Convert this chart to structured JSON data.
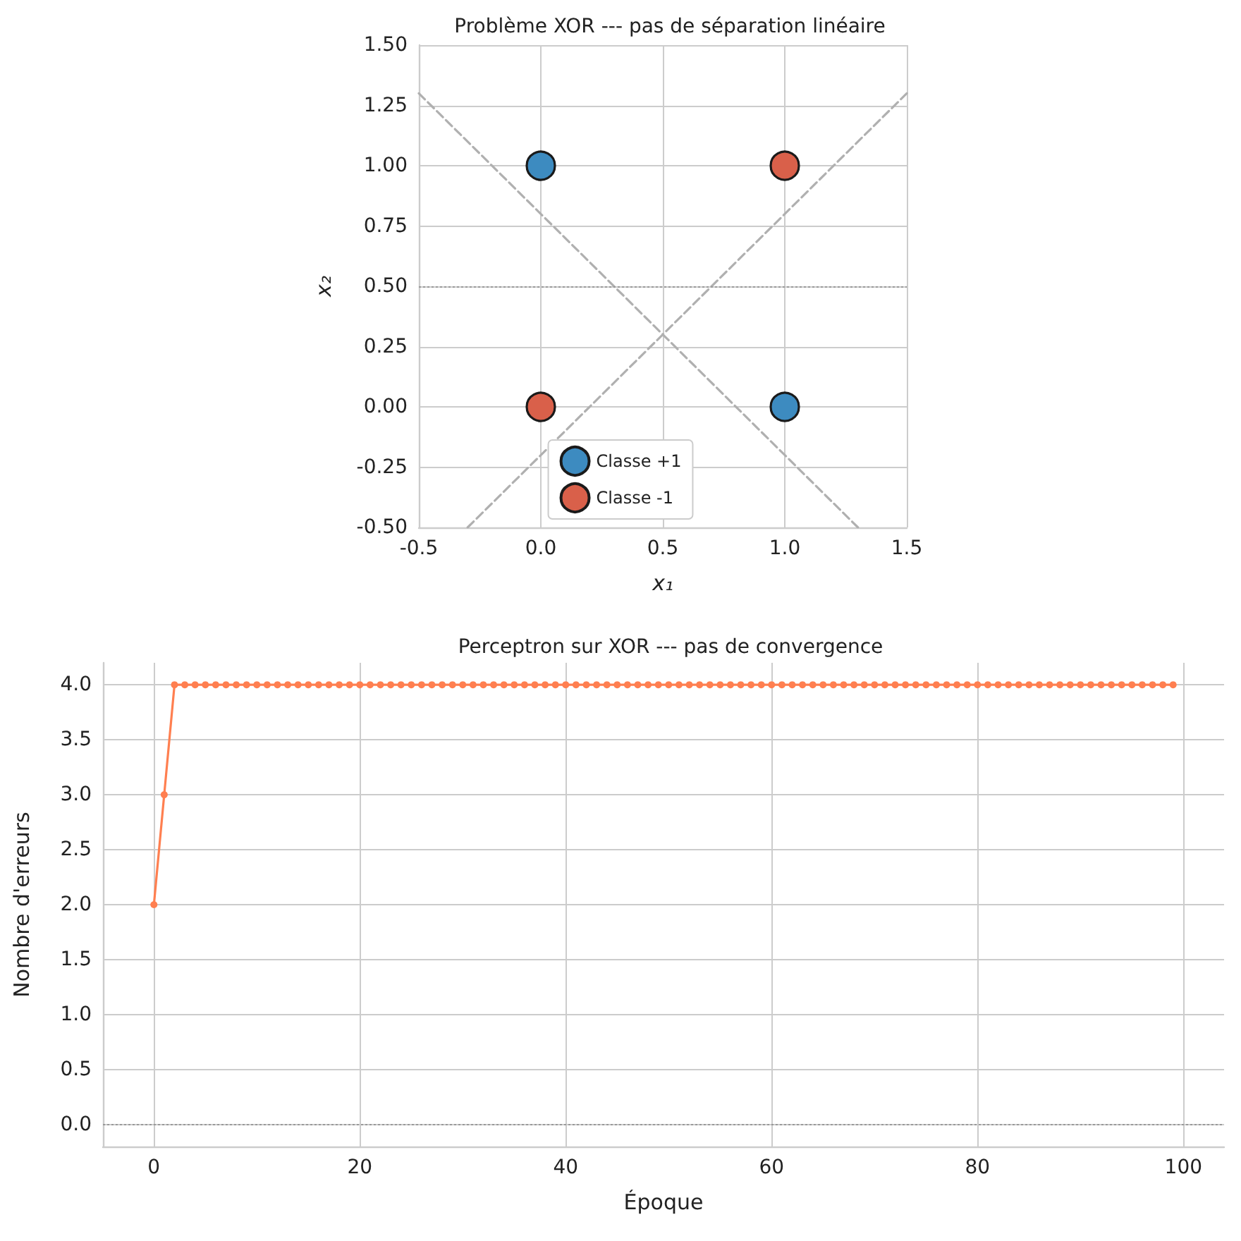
{
  "chart_data": [
    {
      "type": "scatter",
      "title": "Problème XOR --- pas de séparation linéaire",
      "xlabel": "x₁",
      "ylabel": "x₂",
      "xlim": [
        -0.5,
        1.5
      ],
      "ylim": [
        -0.5,
        1.5
      ],
      "xticks": [
        {
          "value": -0.5,
          "label": "-0.5"
        },
        {
          "value": 0,
          "label": "0.0"
        },
        {
          "value": 0.5,
          "label": "0.5"
        },
        {
          "value": 1,
          "label": "1.0"
        },
        {
          "value": 1.5,
          "label": "1.5"
        }
      ],
      "yticks": [
        {
          "value": -0.5,
          "label": "-0.50"
        },
        {
          "value": -0.25,
          "label": "-0.25"
        },
        {
          "value": 0,
          "label": "0.00"
        },
        {
          "value": 0.25,
          "label": "0.25"
        },
        {
          "value": 0.5,
          "label": "0.50"
        },
        {
          "value": 0.75,
          "label": "0.75"
        },
        {
          "value": 1,
          "label": "1.00"
        },
        {
          "value": 1.25,
          "label": "1.25"
        },
        {
          "value": 1.5,
          "label": "1.50"
        }
      ],
      "series": [
        {
          "name": "Classe +1",
          "color": "#3d8bc0",
          "x": [
            0,
            1
          ],
          "values": [
            1,
            0
          ]
        },
        {
          "name": "Classe -1",
          "color": "#d9604a",
          "x": [
            0,
            1
          ],
          "values": [
            0,
            1
          ]
        },
        {
          "type": "line",
          "color": "#b0b0b0",
          "line_style": "dashed",
          "marker": "none",
          "x": [
            -0.5,
            1.3
          ],
          "values": [
            1.3,
            -0.5
          ]
        },
        {
          "type": "line",
          "color": "#b0b0b0",
          "line_style": "dashed",
          "marker": "none",
          "x": [
            -0.3,
            1.5
          ],
          "values": [
            -0.5,
            1.3
          ]
        }
      ],
      "ref_lines": [
        {
          "axis": "y",
          "value": 0.5,
          "color": "#999999",
          "line_style": "dotted"
        }
      ],
      "marker": "circle",
      "grid": true,
      "legend": "bottom"
    },
    {
      "type": "line",
      "title": "Perceptron sur XOR --- pas de convergence",
      "xlabel": "Époque",
      "ylabel": "Nombre d'erreurs",
      "xlim": [
        -4.95,
        103.95
      ],
      "ylim": [
        -0.2,
        4.2
      ],
      "xticks": [
        0,
        20,
        40,
        60,
        80,
        100
      ],
      "yticks": [
        {
          "value": 0,
          "label": "0.0"
        },
        {
          "value": 0.5,
          "label": "0.5"
        },
        {
          "value": 1,
          "label": "1.0"
        },
        {
          "value": 1.5,
          "label": "1.5"
        },
        {
          "value": 2,
          "label": "2.0"
        },
        {
          "value": 2.5,
          "label": "2.5"
        },
        {
          "value": 3,
          "label": "3.0"
        },
        {
          "value": 3.5,
          "label": "3.5"
        },
        {
          "value": 4,
          "label": "4.0"
        }
      ],
      "series": [
        {
          "color": "#ff7f50",
          "x": [
            0,
            1,
            2,
            3,
            4,
            5,
            6,
            7,
            8,
            9,
            10,
            11,
            12,
            13,
            14,
            15,
            16,
            17,
            18,
            19,
            20,
            21,
            22,
            23,
            24,
            25,
            26,
            27,
            28,
            29,
            30,
            31,
            32,
            33,
            34,
            35,
            36,
            37,
            38,
            39,
            40,
            41,
            42,
            43,
            44,
            45,
            46,
            47,
            48,
            49,
            50,
            51,
            52,
            53,
            54,
            55,
            56,
            57,
            58,
            59,
            60,
            61,
            62,
            63,
            64,
            65,
            66,
            67,
            68,
            69,
            70,
            71,
            72,
            73,
            74,
            75,
            76,
            77,
            78,
            79,
            80,
            81,
            82,
            83,
            84,
            85,
            86,
            87,
            88,
            89,
            90,
            91,
            92,
            93,
            94,
            95,
            96,
            97,
            98,
            99
          ],
          "values": [
            2,
            3,
            4,
            4,
            4,
            4,
            4,
            4,
            4,
            4,
            4,
            4,
            4,
            4,
            4,
            4,
            4,
            4,
            4,
            4,
            4,
            4,
            4,
            4,
            4,
            4,
            4,
            4,
            4,
            4,
            4,
            4,
            4,
            4,
            4,
            4,
            4,
            4,
            4,
            4,
            4,
            4,
            4,
            4,
            4,
            4,
            4,
            4,
            4,
            4,
            4,
            4,
            4,
            4,
            4,
            4,
            4,
            4,
            4,
            4,
            4,
            4,
            4,
            4,
            4,
            4,
            4,
            4,
            4,
            4,
            4,
            4,
            4,
            4,
            4,
            4,
            4,
            4,
            4,
            4,
            4,
            4,
            4,
            4,
            4,
            4,
            4,
            4,
            4,
            4,
            4,
            4,
            4,
            4,
            4,
            4,
            4,
            4,
            4,
            4
          ]
        }
      ],
      "ref_lines": [
        {
          "axis": "y",
          "value": 0,
          "color": "#999999",
          "line_style": "dotted"
        }
      ],
      "marker": "circle",
      "line_style": "solid",
      "grid": true
    }
  ]
}
